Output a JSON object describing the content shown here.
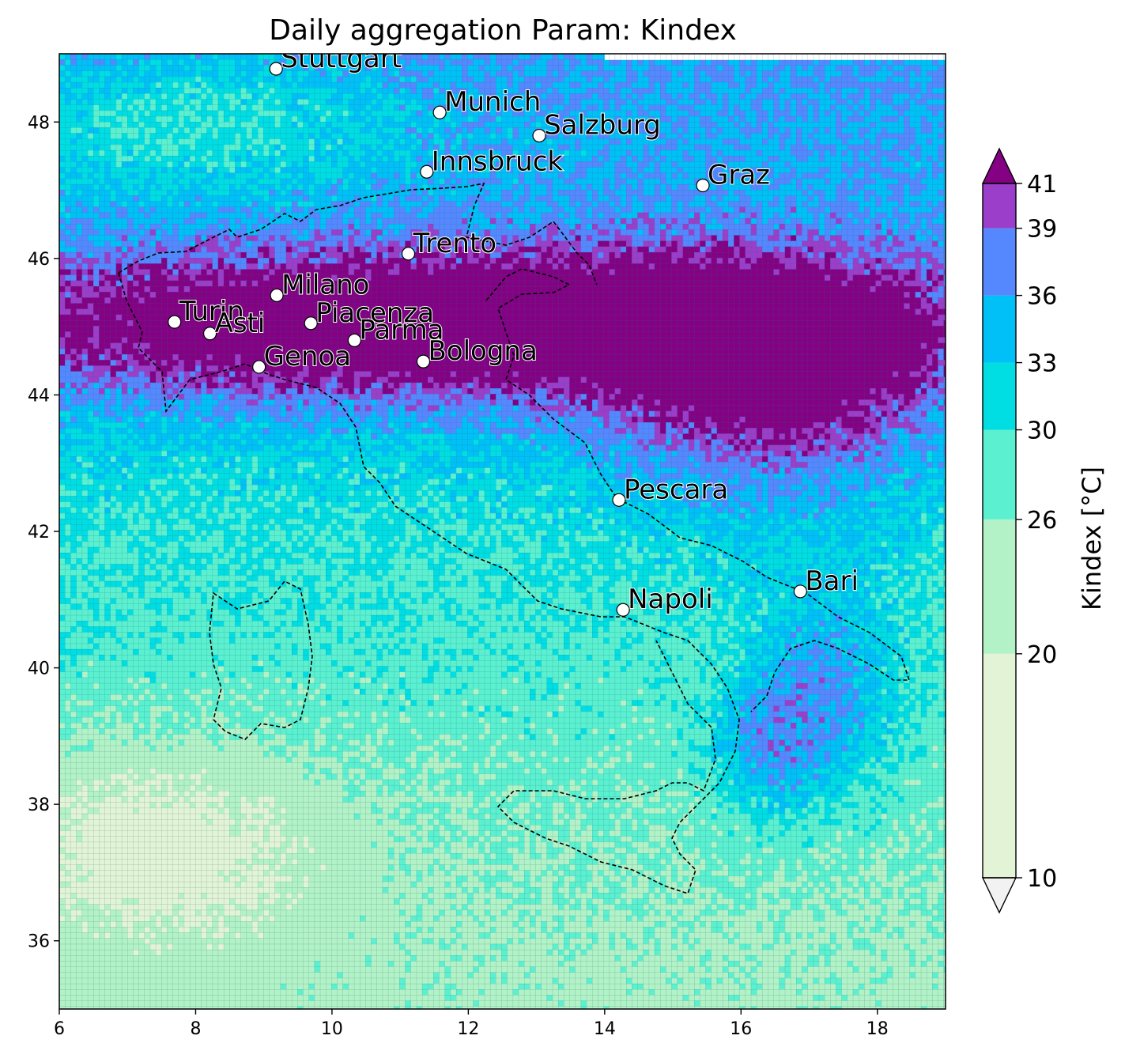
{
  "title": "Daily aggregation Param: Kindex",
  "map": {
    "lon_range": [
      6,
      19
    ],
    "lat_range": [
      35,
      49
    ],
    "x_ticks": [
      "6",
      "8",
      "10",
      "12",
      "14",
      "16",
      "18"
    ],
    "y_ticks": [
      "36",
      "38",
      "40",
      "42",
      "44",
      "46",
      "48"
    ],
    "cities": [
      {
        "name": "Stuttgart",
        "lon": 9.18,
        "lat": 48.78
      },
      {
        "name": "Munich",
        "lon": 11.58,
        "lat": 48.14
      },
      {
        "name": "Salzburg",
        "lon": 13.04,
        "lat": 47.8
      },
      {
        "name": "Innsbruck",
        "lon": 11.39,
        "lat": 47.27
      },
      {
        "name": "Graz",
        "lon": 15.44,
        "lat": 47.07
      },
      {
        "name": "Trento",
        "lon": 11.12,
        "lat": 46.07
      },
      {
        "name": "Milano",
        "lon": 9.19,
        "lat": 45.46
      },
      {
        "name": "Turin",
        "lon": 7.69,
        "lat": 45.07
      },
      {
        "name": "Asti",
        "lon": 8.21,
        "lat": 44.9
      },
      {
        "name": "Piacenza",
        "lon": 9.69,
        "lat": 45.05
      },
      {
        "name": "Parma",
        "lon": 10.33,
        "lat": 44.8
      },
      {
        "name": "Genoa",
        "lon": 8.93,
        "lat": 44.41
      },
      {
        "name": "Bologna",
        "lon": 11.34,
        "lat": 44.49
      },
      {
        "name": "Pescara",
        "lon": 14.21,
        "lat": 42.46
      },
      {
        "name": "Bari",
        "lon": 16.87,
        "lat": 41.12
      },
      {
        "name": "Napoli",
        "lon": 14.27,
        "lat": 40.85
      }
    ]
  },
  "colorbar": {
    "label": "Kindex  [°C]",
    "ticks": [
      "10",
      "20",
      "26",
      "30",
      "33",
      "36",
      "39",
      "41"
    ],
    "levels": [
      10,
      20,
      26,
      30,
      33,
      36,
      39,
      41
    ],
    "colors": [
      "#e3f3d6",
      "#b3f2c6",
      "#5bf0d0",
      "#00dde3",
      "#00c0f7",
      "#5588ff",
      "#9b3ec9"
    ],
    "under_color": "#f2f2f2",
    "over_color": "#840184"
  }
}
